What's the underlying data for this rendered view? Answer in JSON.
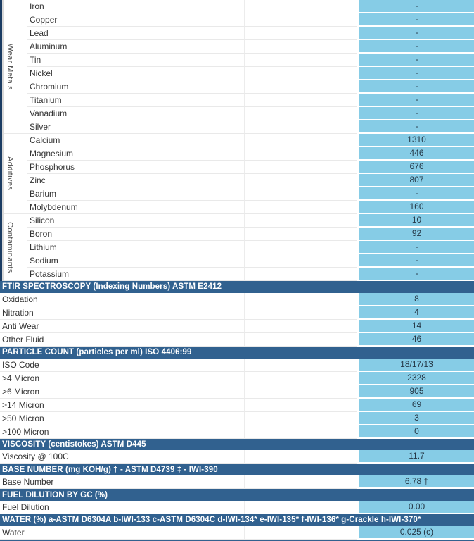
{
  "palette": {
    "header_bg": "#31618F",
    "value_bg": "#86CCE6",
    "rail_navy": "#1B3C63",
    "rail_gray": "#D9D9D9"
  },
  "report": {
    "groups": [
      {
        "label": "Wear Metals",
        "rows": [
          {
            "name": "Iron",
            "value": "-"
          },
          {
            "name": "Copper",
            "value": "-"
          },
          {
            "name": "Lead",
            "value": "-"
          },
          {
            "name": "Aluminum",
            "value": "-"
          },
          {
            "name": "Tin",
            "value": "-"
          },
          {
            "name": "Nickel",
            "value": "-"
          },
          {
            "name": "Chromium",
            "value": "-"
          },
          {
            "name": "Titanium",
            "value": "-"
          },
          {
            "name": "Vanadium",
            "value": "-"
          },
          {
            "name": "Silver",
            "value": "-"
          }
        ]
      },
      {
        "label": "Additives",
        "rows": [
          {
            "name": "Calcium",
            "value": "1310"
          },
          {
            "name": "Magnesium",
            "value": "446"
          },
          {
            "name": "Phosphorus",
            "value": "676"
          },
          {
            "name": "Zinc",
            "value": "807"
          },
          {
            "name": "Barium",
            "value": "-"
          },
          {
            "name": "Molybdenum",
            "value": "160"
          }
        ]
      },
      {
        "label": "Contaminants",
        "rows": [
          {
            "name": "Silicon",
            "value": "10"
          },
          {
            "name": "Boron",
            "value": "92"
          },
          {
            "name": "Lithium",
            "value": "-"
          },
          {
            "name": "Sodium",
            "value": "-"
          },
          {
            "name": "Potassium",
            "value": "-"
          }
        ]
      }
    ],
    "sections": [
      {
        "header": "FTIR SPECTROSCOPY (Indexing Numbers) ASTM E2412",
        "rows": [
          {
            "name": "Oxidation",
            "value": "8"
          },
          {
            "name": "Nitration",
            "value": "4"
          },
          {
            "name": "Anti Wear",
            "value": "14"
          },
          {
            "name": "Other Fluid",
            "value": "46"
          }
        ]
      },
      {
        "header": "PARTICLE COUNT (particles per ml) ISO 4406:99",
        "rows": [
          {
            "name": "ISO Code",
            "value": "18/17/13"
          },
          {
            "name": ">4 Micron",
            "value": "2328"
          },
          {
            "name": ">6 Micron",
            "value": "905"
          },
          {
            "name": ">14 Micron",
            "value": "69"
          },
          {
            "name": ">50 Micron",
            "value": "3"
          },
          {
            "name": ">100 Micron",
            "value": "0"
          }
        ]
      },
      {
        "header": "VISCOSITY (centistokes) ASTM D445",
        "rows": [
          {
            "name": "Viscosity @ 100C",
            "value": "11.7"
          }
        ]
      },
      {
        "header": "BASE NUMBER (mg KOH/g) † - ASTM D4739 ‡ - IWI-390",
        "rows": [
          {
            "name": "Base Number",
            "value": "6.78 †"
          }
        ]
      },
      {
        "header": "FUEL DILUTION BY GC (%)",
        "rows": [
          {
            "name": "Fuel Dilution",
            "value": "0.00"
          }
        ]
      },
      {
        "header": "WATER (%) a-ASTM D6304A b-IWI-133 c-ASTM D6304C d-IWI-134* e-IWI-135* f-IWI-136* g-Crackle h-IWI-370*",
        "rows": [
          {
            "name": "Water",
            "value": "0.025 (c)"
          }
        ]
      }
    ]
  }
}
